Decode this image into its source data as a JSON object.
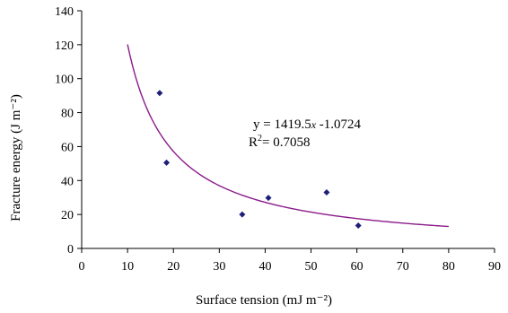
{
  "chart_data": {
    "type": "scatter",
    "xlabel": "Surface tension (mJ m⁻²)",
    "ylabel": "Fracture energy (J m⁻²)",
    "xlim": [
      0,
      90
    ],
    "ylim": [
      0,
      140
    ],
    "x_ticks": [
      0,
      10,
      20,
      30,
      40,
      50,
      60,
      70,
      80,
      90
    ],
    "y_ticks": [
      0,
      20,
      40,
      60,
      80,
      100,
      120,
      140
    ],
    "grid": false,
    "legend": "none",
    "series": [
      {
        "marker": "diamond",
        "color": "#1f1f7a",
        "points": [
          {
            "x": 17.0,
            "y": 91.5
          },
          {
            "x": 18.5,
            "y": 50.5
          },
          {
            "x": 35.0,
            "y": 20.0
          },
          {
            "x": 40.7,
            "y": 29.8
          },
          {
            "x": 53.4,
            "y": 33.0
          },
          {
            "x": 60.3,
            "y": 13.5
          }
        ]
      }
    ],
    "trendline": {
      "type": "power",
      "coefficient": 1419.5,
      "exponent": -1.0724,
      "x_range": [
        10,
        80
      ],
      "color": "#8b1a8b"
    },
    "annotations": {
      "equation_prefix": "y = 1419.5",
      "equation_x": "x",
      "equation_suffix": " -1.0724",
      "r2_prefix": "R",
      "r2_sup": "2",
      "r2_suffix": "= 0.7058"
    }
  }
}
